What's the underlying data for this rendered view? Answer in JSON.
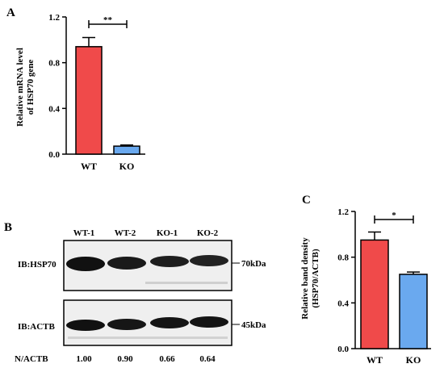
{
  "panels": {
    "a": {
      "letter": "A",
      "chart_data": {
        "type": "bar",
        "categories": [
          "WT",
          "KO"
        ],
        "values": [
          0.94,
          0.07
        ],
        "errors": [
          0.08,
          0.01
        ],
        "colors": [
          "#f04a4a",
          "#6aa9ef"
        ],
        "ylabel_line1": "Relative mRNA level",
        "ylabel_line2": "of HSP70 gene",
        "ylim": [
          0,
          1.2
        ],
        "yticks": [
          "0.0",
          "0.4",
          "0.8",
          "1.2"
        ],
        "significance": "**"
      }
    },
    "b": {
      "letter": "B",
      "lanes": [
        "WT-1",
        "WT-2",
        "KO-1",
        "KO-2"
      ],
      "blots": [
        {
          "label": "IB:HSP70",
          "size": "70kDa"
        },
        {
          "label": "IB:ACTB",
          "size": "45kDa"
        }
      ],
      "ratio_label": "N/ACTB",
      "ratio_values": [
        "1.00",
        "0.90",
        "0.66",
        "0.64"
      ]
    },
    "c": {
      "letter": "C",
      "chart_data": {
        "type": "bar",
        "categories": [
          "WT",
          "KO"
        ],
        "values": [
          0.95,
          0.65
        ],
        "errors": [
          0.07,
          0.02
        ],
        "colors": [
          "#f04a4a",
          "#6aa9ef"
        ],
        "ylabel_line1": "Relative band density",
        "ylabel_line2": "(HSP70/ACTB)",
        "ylim": [
          0,
          1.2
        ],
        "yticks": [
          "0.0",
          "0.4",
          "0.8",
          "1.2"
        ],
        "significance": "*"
      }
    }
  }
}
